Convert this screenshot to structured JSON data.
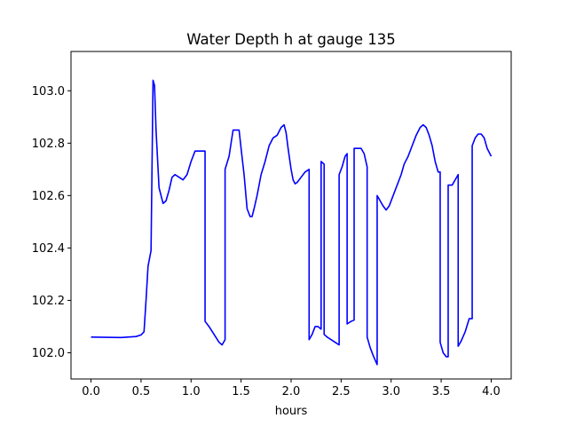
{
  "chart_data": {
    "type": "line",
    "title": "Water Depth h at gauge 135",
    "xlabel": "hours",
    "ylabel": "",
    "xlim": [
      -0.2,
      4.2
    ],
    "ylim": [
      101.9,
      103.15
    ],
    "xticks": [
      0.0,
      0.5,
      1.0,
      1.5,
      2.0,
      2.5,
      3.0,
      3.5,
      4.0
    ],
    "xtick_labels": [
      "0.0",
      "0.5",
      "1.0",
      "1.5",
      "2.0",
      "2.5",
      "3.0",
      "3.5",
      "4.0"
    ],
    "yticks": [
      102.0,
      102.2,
      102.4,
      102.6,
      102.8,
      103.0
    ],
    "ytick_labels": [
      "102.0",
      "102.2",
      "102.4",
      "102.6",
      "102.8",
      "103.0"
    ],
    "grid": false,
    "legend": "none",
    "series": [
      {
        "color": "#0000ff",
        "x": [
          0.0,
          0.3,
          0.45,
          0.5,
          0.53,
          0.55,
          0.57,
          0.6,
          0.62,
          0.62,
          0.635,
          0.65,
          0.68,
          0.7,
          0.72,
          0.75,
          0.78,
          0.81,
          0.84,
          0.88,
          0.92,
          0.96,
          1.0,
          1.04,
          1.08,
          1.11,
          1.14,
          1.14,
          1.18,
          1.23,
          1.28,
          1.31,
          1.34,
          1.34,
          1.38,
          1.42,
          1.46,
          1.48,
          1.5,
          1.53,
          1.56,
          1.59,
          1.61,
          1.63,
          1.66,
          1.7,
          1.74,
          1.78,
          1.82,
          1.86,
          1.9,
          1.93,
          1.95,
          1.97,
          2.0,
          2.02,
          2.04,
          2.06,
          2.1,
          2.14,
          2.18,
          2.18,
          2.21,
          2.24,
          2.27,
          2.3,
          2.3,
          2.33,
          2.33,
          2.36,
          2.4,
          2.44,
          2.48,
          2.48,
          2.51,
          2.54,
          2.56,
          2.56,
          2.6,
          2.63,
          2.63,
          2.66,
          2.7,
          2.73,
          2.76,
          2.76,
          2.79,
          2.82,
          2.86,
          2.86,
          2.89,
          2.92,
          2.95,
          2.98,
          3.01,
          3.04,
          3.07,
          3.1,
          3.13,
          3.17,
          3.21,
          3.25,
          3.29,
          3.32,
          3.35,
          3.38,
          3.41,
          3.44,
          3.47,
          3.49,
          3.49,
          3.52,
          3.55,
          3.57,
          3.57,
          3.61,
          3.64,
          3.67,
          3.67,
          3.7,
          3.74,
          3.78,
          3.81,
          3.81,
          3.84,
          3.87,
          3.9,
          3.93,
          3.96,
          4.0
        ],
        "y": [
          102.06,
          102.058,
          102.062,
          102.068,
          102.08,
          102.2,
          102.33,
          102.39,
          103.04,
          103.04,
          103.02,
          102.85,
          102.63,
          102.6,
          102.57,
          102.58,
          102.62,
          102.67,
          102.68,
          102.67,
          102.66,
          102.68,
          102.73,
          102.77,
          102.77,
          102.77,
          102.77,
          102.12,
          102.1,
          102.07,
          102.04,
          102.03,
          102.05,
          102.7,
          102.75,
          102.85,
          102.85,
          102.85,
          102.78,
          102.68,
          102.55,
          102.52,
          102.52,
          102.55,
          102.6,
          102.68,
          102.73,
          102.79,
          102.82,
          102.83,
          102.86,
          102.87,
          102.84,
          102.78,
          102.7,
          102.66,
          102.645,
          102.65,
          102.67,
          102.69,
          102.7,
          102.05,
          102.07,
          102.1,
          102.1,
          102.09,
          102.73,
          102.72,
          102.07,
          102.06,
          102.05,
          102.04,
          102.03,
          102.68,
          102.71,
          102.75,
          102.76,
          102.11,
          102.12,
          102.125,
          102.78,
          102.78,
          102.78,
          102.76,
          102.71,
          102.06,
          102.02,
          101.99,
          101.955,
          102.6,
          102.58,
          102.56,
          102.545,
          102.56,
          102.59,
          102.62,
          102.65,
          102.68,
          102.72,
          102.75,
          102.79,
          102.83,
          102.86,
          102.87,
          102.86,
          102.83,
          102.79,
          102.73,
          102.69,
          102.69,
          102.04,
          102.0,
          101.985,
          101.985,
          102.64,
          102.64,
          102.66,
          102.68,
          102.025,
          102.045,
          102.08,
          102.13,
          102.13,
          102.79,
          102.82,
          102.835,
          102.835,
          102.82,
          102.78,
          102.75
        ]
      }
    ]
  }
}
